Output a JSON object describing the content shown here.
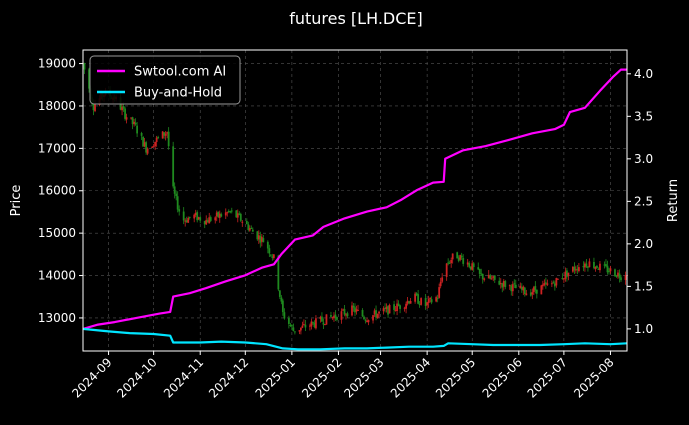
{
  "chart_data": {
    "type": "line",
    "title": "futures [LH.DCE]",
    "ylabel_left": "Price",
    "ylabel_right": "Return",
    "xlabel": "",
    "grid": true,
    "legend_placement": "top-left",
    "background": "#000000",
    "x_ticks": [
      "2024-09",
      "2024-10",
      "2024-11",
      "2024-12",
      "2025-01",
      "2025-02",
      "2025-03",
      "2025-04",
      "2025-05",
      "2025-06",
      "2025-07",
      "2025-08"
    ],
    "x_range": [
      "2024-08-15",
      "2025-08-12"
    ],
    "left_axis": {
      "ylim": [
        12220,
        19320
      ],
      "ticks": [
        13000,
        14000,
        15000,
        16000,
        17000,
        18000,
        19000
      ]
    },
    "right_axis": {
      "ylim": [
        0.74,
        4.28
      ],
      "ticks": [
        1.0,
        1.5,
        2.0,
        2.5,
        3.0,
        3.5,
        4.0
      ]
    },
    "candle_colors": {
      "up": "#cc2222",
      "down": "#1f8a1f"
    },
    "price_path": [
      [
        "2024-08-15",
        19000
      ],
      [
        "2024-08-22",
        18000
      ],
      [
        "2024-08-29",
        18300
      ],
      [
        "2024-09-05",
        18200
      ],
      [
        "2024-09-12",
        17800
      ],
      [
        "2024-09-19",
        17500
      ],
      [
        "2024-09-26",
        17000
      ],
      [
        "2024-10-03",
        17200
      ],
      [
        "2024-10-10",
        17400
      ],
      [
        "2024-10-14",
        16000
      ],
      [
        "2024-10-20",
        15300
      ],
      [
        "2024-10-28",
        15400
      ],
      [
        "2024-11-05",
        15300
      ],
      [
        "2024-11-13",
        15400
      ],
      [
        "2024-11-21",
        15500
      ],
      [
        "2024-11-29",
        15300
      ],
      [
        "2024-12-07",
        15000
      ],
      [
        "2024-12-14",
        14800
      ],
      [
        "2024-12-20",
        14400
      ],
      [
        "2024-12-26",
        13100
      ],
      [
        "2025-01-02",
        12700
      ],
      [
        "2025-01-10",
        12800
      ],
      [
        "2025-01-18",
        12900
      ],
      [
        "2025-01-26",
        13000
      ],
      [
        "2025-02-03",
        13100
      ],
      [
        "2025-02-11",
        13200
      ],
      [
        "2025-02-19",
        13000
      ],
      [
        "2025-02-27",
        13100
      ],
      [
        "2025-03-07",
        13200
      ],
      [
        "2025-03-15",
        13300
      ],
      [
        "2025-03-23",
        13500
      ],
      [
        "2025-03-31",
        13300
      ],
      [
        "2025-04-08",
        13500
      ],
      [
        "2025-04-12",
        14200
      ],
      [
        "2025-04-20",
        14500
      ],
      [
        "2025-04-28",
        14300
      ],
      [
        "2025-05-06",
        14000
      ],
      [
        "2025-05-14",
        13900
      ],
      [
        "2025-05-22",
        13800
      ],
      [
        "2025-05-30",
        13700
      ],
      [
        "2025-06-07",
        13600
      ],
      [
        "2025-06-15",
        13700
      ],
      [
        "2025-06-23",
        13800
      ],
      [
        "2025-07-01",
        14000
      ],
      [
        "2025-07-09",
        14200
      ],
      [
        "2025-07-17",
        14300
      ],
      [
        "2025-07-25",
        14200
      ],
      [
        "2025-08-02",
        14100
      ],
      [
        "2025-08-08",
        14000
      ],
      [
        "2025-08-12",
        14100
      ]
    ],
    "series": [
      {
        "name": "Swtool.com AI",
        "color": "#ff00ff",
        "points": [
          [
            "2024-08-15",
            1.0
          ],
          [
            "2024-08-25",
            1.05
          ],
          [
            "2024-09-05",
            1.08
          ],
          [
            "2024-09-20",
            1.13
          ],
          [
            "2024-10-05",
            1.18
          ],
          [
            "2024-10-12",
            1.2
          ],
          [
            "2024-10-14",
            1.38
          ],
          [
            "2024-10-25",
            1.42
          ],
          [
            "2024-11-05",
            1.48
          ],
          [
            "2024-11-18",
            1.56
          ],
          [
            "2024-12-01",
            1.63
          ],
          [
            "2024-12-12",
            1.72
          ],
          [
            "2024-12-20",
            1.76
          ],
          [
            "2024-12-25",
            1.88
          ],
          [
            "2025-01-03",
            2.05
          ],
          [
            "2025-01-15",
            2.1
          ],
          [
            "2025-01-22",
            2.2
          ],
          [
            "2025-02-05",
            2.3
          ],
          [
            "2025-02-20",
            2.38
          ],
          [
            "2025-03-05",
            2.43
          ],
          [
            "2025-03-15",
            2.52
          ],
          [
            "2025-03-25",
            2.63
          ],
          [
            "2025-04-05",
            2.72
          ],
          [
            "2025-04-12",
            2.73
          ],
          [
            "2025-04-13",
            3.0
          ],
          [
            "2025-04-25",
            3.1
          ],
          [
            "2025-05-10",
            3.15
          ],
          [
            "2025-05-25",
            3.22
          ],
          [
            "2025-06-10",
            3.3
          ],
          [
            "2025-06-25",
            3.35
          ],
          [
            "2025-07-01",
            3.4
          ],
          [
            "2025-07-05",
            3.55
          ],
          [
            "2025-07-15",
            3.6
          ],
          [
            "2025-07-25",
            3.8
          ],
          [
            "2025-08-03",
            3.97
          ],
          [
            "2025-08-08",
            4.05
          ],
          [
            "2025-08-12",
            4.05
          ]
        ]
      },
      {
        "name": "Buy-and-Hold",
        "color": "#00e5ff",
        "points": [
          [
            "2024-08-15",
            1.0
          ],
          [
            "2024-09-01",
            0.97
          ],
          [
            "2024-09-15",
            0.95
          ],
          [
            "2024-10-01",
            0.94
          ],
          [
            "2024-10-12",
            0.92
          ],
          [
            "2024-10-14",
            0.84
          ],
          [
            "2024-11-01",
            0.84
          ],
          [
            "2024-11-15",
            0.85
          ],
          [
            "2024-12-01",
            0.84
          ],
          [
            "2024-12-15",
            0.82
          ],
          [
            "2024-12-26",
            0.77
          ],
          [
            "2025-01-05",
            0.76
          ],
          [
            "2025-01-20",
            0.76
          ],
          [
            "2025-02-05",
            0.77
          ],
          [
            "2025-02-20",
            0.77
          ],
          [
            "2025-03-05",
            0.78
          ],
          [
            "2025-03-20",
            0.79
          ],
          [
            "2025-04-05",
            0.79
          ],
          [
            "2025-04-12",
            0.8
          ],
          [
            "2025-04-15",
            0.83
          ],
          [
            "2025-05-01",
            0.82
          ],
          [
            "2025-05-15",
            0.81
          ],
          [
            "2025-06-01",
            0.81
          ],
          [
            "2025-06-15",
            0.81
          ],
          [
            "2025-07-01",
            0.82
          ],
          [
            "2025-07-15",
            0.83
          ],
          [
            "2025-08-01",
            0.82
          ],
          [
            "2025-08-12",
            0.83
          ]
        ]
      }
    ]
  }
}
